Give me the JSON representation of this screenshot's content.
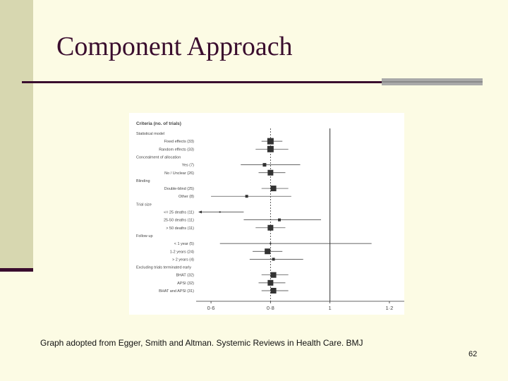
{
  "slide": {
    "title": "Component Approach",
    "caption": "Graph adopted from Egger, Smith and Altman. Systemic Reviews in Health Care. BMJ",
    "page_number": "62"
  },
  "colors": {
    "title": "#3a0d2e",
    "background": "#fcfbe4",
    "left_bar": "#d7d7b0",
    "grey_rule": "#a9a9a9"
  },
  "chart_data": {
    "type": "forest",
    "header": "Criteria (no. of trials)",
    "x_ticks": [
      "0·6",
      "0·8",
      "1",
      "1·2"
    ],
    "x_tick_values": [
      0.6,
      0.8,
      1.0,
      1.2
    ],
    "xlim": [
      0.55,
      1.25
    ],
    "reference_line": 1.0,
    "pooled_line": 0.8,
    "rows": [
      {
        "type": "group",
        "label": "Statistical model"
      },
      {
        "type": "item",
        "label": "Fixed effects (33)",
        "est": 0.8,
        "lo": 0.77,
        "hi": 0.84,
        "size": 9
      },
      {
        "type": "item",
        "label": "Random effects (33)",
        "est": 0.8,
        "lo": 0.75,
        "hi": 0.86,
        "size": 9
      },
      {
        "type": "group",
        "label": "Concealment of allocation"
      },
      {
        "type": "item",
        "label": "Yes (7)",
        "est": 0.78,
        "lo": 0.7,
        "hi": 0.9,
        "size": 5
      },
      {
        "type": "item",
        "label": "No / Unclear (26)",
        "est": 0.8,
        "lo": 0.76,
        "hi": 0.85,
        "size": 8
      },
      {
        "type": "group",
        "label": "Blinding"
      },
      {
        "type": "item",
        "label": "Double-blind (25)",
        "est": 0.81,
        "lo": 0.77,
        "hi": 0.86,
        "size": 8
      },
      {
        "type": "item",
        "label": "Other (8)",
        "est": 0.72,
        "lo": 0.6,
        "hi": 0.87,
        "size": 4
      },
      {
        "type": "group",
        "label": "Trial size"
      },
      {
        "type": "item",
        "label": "<= 25 deaths (11)",
        "est": 0.63,
        "lo": 0.56,
        "hi": 0.71,
        "size": 2,
        "arrow": true
      },
      {
        "type": "item",
        "label": "25-50 deaths (11)",
        "est": 0.83,
        "lo": 0.71,
        "hi": 0.97,
        "size": 4
      },
      {
        "type": "item",
        "label": "> 50 deaths (11)",
        "est": 0.8,
        "lo": 0.75,
        "hi": 0.85,
        "size": 8
      },
      {
        "type": "group",
        "label": "Follow up"
      },
      {
        "type": "item",
        "label": "< 1 year (5)",
        "est": 0.8,
        "lo": 0.63,
        "hi": 1.14,
        "size": 2
      },
      {
        "type": "item",
        "label": "1-2 years (24)",
        "est": 0.79,
        "lo": 0.74,
        "hi": 0.84,
        "size": 8
      },
      {
        "type": "item",
        "label": "> 2 years (4)",
        "est": 0.81,
        "lo": 0.73,
        "hi": 0.91,
        "size": 4
      },
      {
        "type": "group",
        "label": "Excluding trials terminated early"
      },
      {
        "type": "item",
        "label": "BHAT (32)",
        "est": 0.81,
        "lo": 0.77,
        "hi": 0.86,
        "size": 8
      },
      {
        "type": "item",
        "label": "APSI (32)",
        "est": 0.8,
        "lo": 0.76,
        "hi": 0.85,
        "size": 8
      },
      {
        "type": "item",
        "label": "BHAT and APSI (31)",
        "est": 0.81,
        "lo": 0.77,
        "hi": 0.86,
        "size": 8
      }
    ]
  }
}
